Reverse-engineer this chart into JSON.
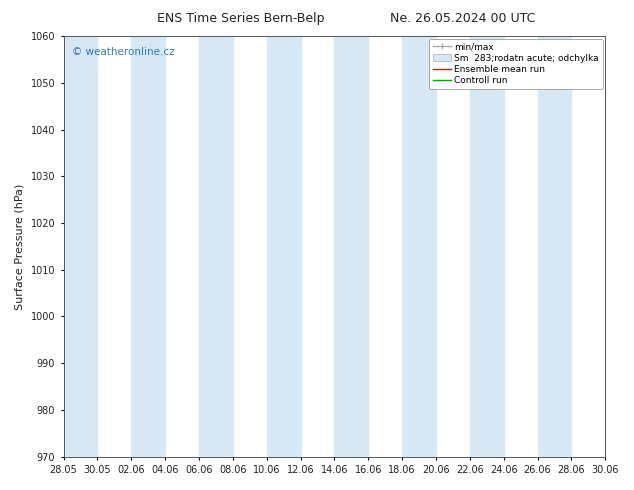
{
  "title_left": "ENS Time Series Bern-Belp",
  "title_right": "Ne. 26.05.2024 00 UTC",
  "ylabel": "Surface Pressure (hPa)",
  "ylim": [
    970,
    1060
  ],
  "yticks": [
    970,
    980,
    990,
    1000,
    1010,
    1020,
    1030,
    1040,
    1050,
    1060
  ],
  "xtick_labels": [
    "28.05",
    "30.05",
    "02.06",
    "04.06",
    "06.06",
    "08.06",
    "10.06",
    "12.06",
    "14.06",
    "16.06",
    "18.06",
    "20.06",
    "22.06",
    "24.06",
    "26.06",
    "28.06",
    "30.06"
  ],
  "watermark": "© weatheronline.cz",
  "watermark_color": "#3377bb",
  "legend_entries": [
    "min/max",
    "Sm  283;rodatn acute; odchylka",
    "Ensemble mean run",
    "Controll run"
  ],
  "band_color": "#d6e8f5",
  "bg_color": "#ffffff",
  "plot_bg_color": "#ffffff",
  "axis_color": "#555555",
  "font_color": "#222222",
  "title_fontsize": 9,
  "tick_fontsize": 7,
  "ylabel_fontsize": 8,
  "legend_fontsize": 6.5,
  "watermark_fontsize": 7.5,
  "figsize": [
    6.34,
    4.9
  ],
  "dpi": 100
}
